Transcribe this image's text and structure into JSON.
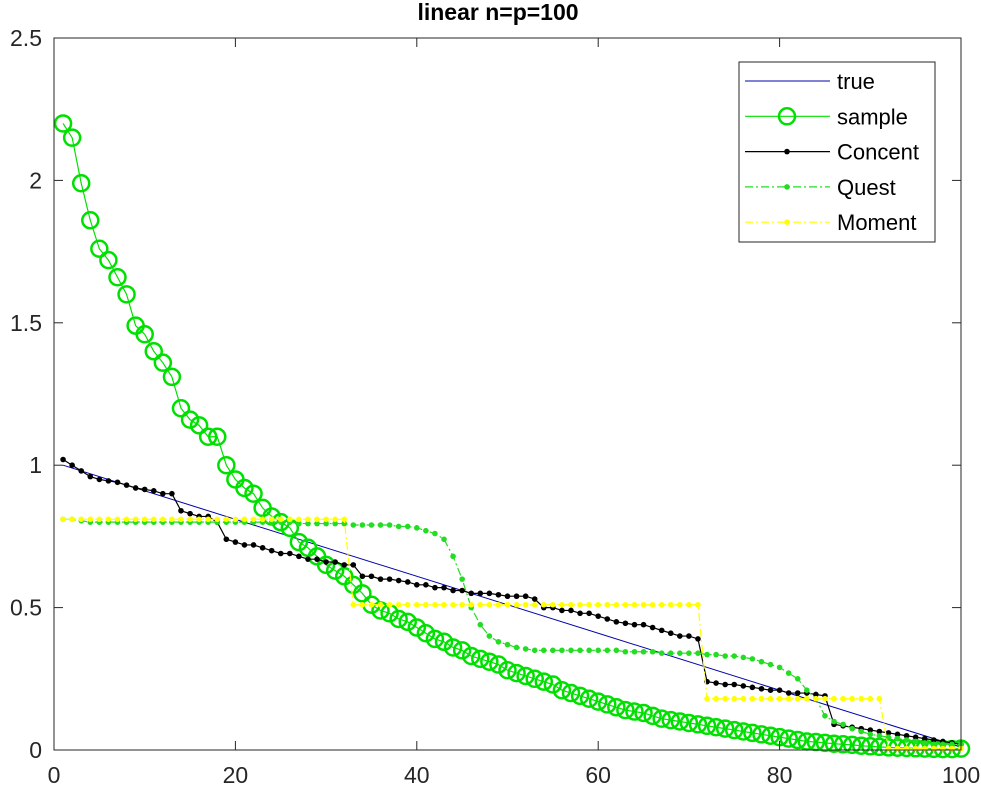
{
  "chart_data": {
    "type": "line",
    "title": "linear n=p=100",
    "xlabel": "",
    "ylabel": "",
    "xlim": [
      0,
      100
    ],
    "ylim": [
      0,
      2.5
    ],
    "x_ticks": [
      0,
      20,
      40,
      60,
      80,
      100
    ],
    "x_tick_labels": [
      "0",
      "20",
      "40",
      "60",
      "80",
      "100"
    ],
    "y_ticks": [
      0,
      0.5,
      1,
      1.5,
      2,
      2.5
    ],
    "y_tick_labels": [
      "0",
      "0.5",
      "1",
      "1.5",
      "2",
      "2.5"
    ],
    "grid": false,
    "legend_position": "top-right",
    "series": [
      {
        "name": "true",
        "color": "#0000aa",
        "line_style": "solid",
        "marker": "none",
        "description": "linear",
        "x_range": [
          1,
          100
        ],
        "y_range": [
          1.0,
          0.01
        ]
      },
      {
        "name": "sample",
        "color": "#00e000",
        "line_style": "solid",
        "marker": "open-circle",
        "values": [
          2.2,
          2.15,
          1.99,
          1.86,
          1.76,
          1.72,
          1.66,
          1.6,
          1.49,
          1.46,
          1.4,
          1.36,
          1.31,
          1.2,
          1.16,
          1.14,
          1.1,
          1.1,
          1.0,
          0.95,
          0.92,
          0.9,
          0.85,
          0.82,
          0.8,
          0.78,
          0.73,
          0.71,
          0.68,
          0.65,
          0.63,
          0.61,
          0.58,
          0.55,
          0.51,
          0.49,
          0.48,
          0.46,
          0.45,
          0.43,
          0.41,
          0.39,
          0.38,
          0.36,
          0.35,
          0.33,
          0.32,
          0.31,
          0.3,
          0.28,
          0.27,
          0.26,
          0.25,
          0.24,
          0.23,
          0.21,
          0.2,
          0.19,
          0.18,
          0.17,
          0.16,
          0.15,
          0.14,
          0.135,
          0.13,
          0.12,
          0.11,
          0.105,
          0.1,
          0.095,
          0.09,
          0.085,
          0.08,
          0.075,
          0.07,
          0.065,
          0.06,
          0.055,
          0.05,
          0.045,
          0.04,
          0.035,
          0.03,
          0.028,
          0.025,
          0.022,
          0.02,
          0.018,
          0.015,
          0.013,
          0.011,
          0.009,
          0.008,
          0.007,
          0.006,
          0.005,
          0.004,
          0.003,
          0.003,
          0.005
        ]
      },
      {
        "name": "Concent",
        "color": "#000000",
        "line_style": "solid",
        "marker": "dot",
        "values": [
          1.02,
          1.0,
          0.98,
          0.96,
          0.95,
          0.945,
          0.94,
          0.93,
          0.92,
          0.915,
          0.91,
          0.9,
          0.9,
          0.84,
          0.83,
          0.82,
          0.82,
          0.8,
          0.74,
          0.73,
          0.72,
          0.72,
          0.71,
          0.7,
          0.69,
          0.69,
          0.68,
          0.67,
          0.67,
          0.66,
          0.66,
          0.65,
          0.65,
          0.61,
          0.61,
          0.6,
          0.6,
          0.595,
          0.59,
          0.58,
          0.58,
          0.57,
          0.57,
          0.56,
          0.56,
          0.55,
          0.55,
          0.55,
          0.545,
          0.54,
          0.54,
          0.54,
          0.53,
          0.5,
          0.5,
          0.49,
          0.49,
          0.48,
          0.48,
          0.47,
          0.46,
          0.45,
          0.445,
          0.44,
          0.44,
          0.43,
          0.42,
          0.41,
          0.4,
          0.4,
          0.39,
          0.24,
          0.235,
          0.23,
          0.23,
          0.225,
          0.22,
          0.215,
          0.21,
          0.21,
          0.2,
          0.2,
          0.2,
          0.195,
          0.19,
          0.09,
          0.085,
          0.08,
          0.075,
          0.07,
          0.065,
          0.06,
          0.055,
          0.05,
          0.045,
          0.04,
          0.035,
          0.03,
          0.025,
          0.02
        ]
      },
      {
        "name": "Quest",
        "color": "#22dd22",
        "line_style": "dash-dot",
        "marker": "dot",
        "values": [
          0.81,
          0.81,
          0.805,
          0.8,
          0.8,
          0.8,
          0.8,
          0.8,
          0.8,
          0.8,
          0.8,
          0.8,
          0.8,
          0.8,
          0.8,
          0.8,
          0.8,
          0.8,
          0.8,
          0.8,
          0.8,
          0.8,
          0.8,
          0.8,
          0.8,
          0.8,
          0.795,
          0.795,
          0.795,
          0.795,
          0.795,
          0.795,
          0.79,
          0.79,
          0.79,
          0.79,
          0.79,
          0.785,
          0.785,
          0.78,
          0.77,
          0.76,
          0.74,
          0.68,
          0.6,
          0.5,
          0.44,
          0.4,
          0.38,
          0.37,
          0.36,
          0.355,
          0.35,
          0.35,
          0.35,
          0.35,
          0.35,
          0.35,
          0.35,
          0.35,
          0.35,
          0.35,
          0.345,
          0.345,
          0.345,
          0.345,
          0.34,
          0.34,
          0.34,
          0.34,
          0.34,
          0.335,
          0.335,
          0.33,
          0.33,
          0.325,
          0.32,
          0.31,
          0.3,
          0.29,
          0.27,
          0.25,
          0.21,
          0.18,
          0.12,
          0.1,
          0.09,
          0.075,
          0.065,
          0.055,
          0.05,
          0.045,
          0.04,
          0.035,
          0.03,
          0.025,
          0.02,
          0.02,
          0.02,
          0.02
        ]
      },
      {
        "name": "Moment",
        "color": "#ffff00",
        "line_style": "dash-dot",
        "marker": "dot",
        "segments": [
          {
            "x_start": 1,
            "x_end": 32,
            "y": 0.81
          },
          {
            "x_start": 33,
            "x_end": 71,
            "y": 0.51
          },
          {
            "x_start": 72,
            "x_end": 91,
            "y": 0.18
          },
          {
            "x_start": 92,
            "x_end": 100,
            "y": 0.005
          }
        ]
      }
    ]
  }
}
